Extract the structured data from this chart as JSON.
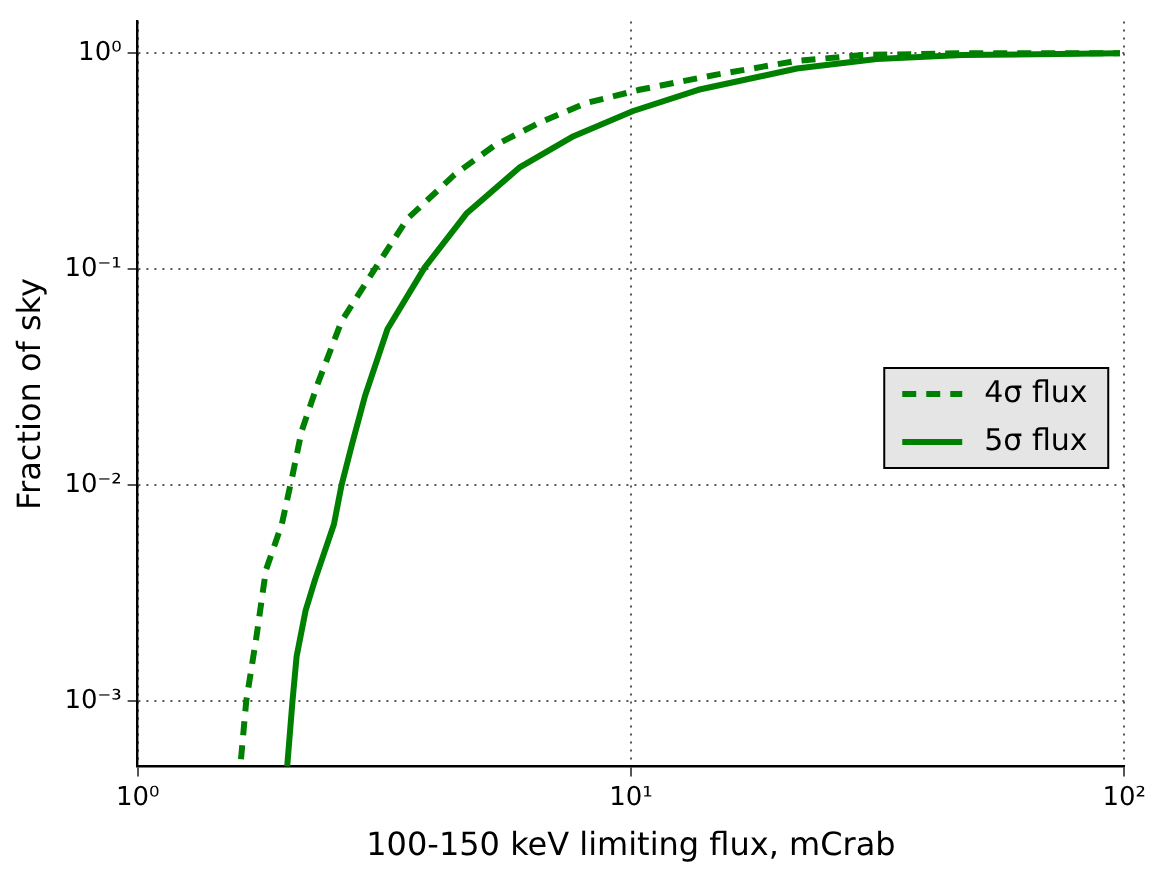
{
  "chart_data": {
    "type": "line",
    "xlabel": "100-150 keV limiting flux, mCrab",
    "ylabel": "Fraction of sky",
    "log": "xy",
    "grid": true,
    "legend": "right",
    "marker": "none",
    "xlim": [
      1,
      100
    ],
    "xticks": [
      {
        "value": 1,
        "label": "10⁰"
      },
      {
        "value": 10,
        "label": "10¹"
      },
      {
        "value": 100,
        "label": "10²"
      }
    ],
    "ylim": [
      0.0005,
      1.4
    ],
    "yticks": [
      {
        "value": 0.001,
        "label": "10⁻³"
      },
      {
        "value": 0.01,
        "label": "10⁻²"
      },
      {
        "value": 0.1,
        "label": "10⁻¹"
      },
      {
        "value": 1,
        "label": "10⁰"
      }
    ],
    "series": [
      {
        "name": "4σ flux",
        "color": "#008000",
        "line_style": "dashed",
        "x": [
          1.62,
          1.66,
          1.74,
          1.82,
          1.96,
          2.06,
          2.15,
          2.32,
          2.59,
          2.92,
          3.52,
          4.39,
          5.28,
          6.53,
          8.08,
          10.4,
          15.0,
          21.7,
          29.5,
          46.9,
          98
        ],
        "values": [
          0.00054,
          0.001,
          0.00197,
          0.00405,
          0.0066,
          0.0111,
          0.0178,
          0.0297,
          0.0574,
          0.0884,
          0.171,
          0.274,
          0.373,
          0.477,
          0.586,
          0.677,
          0.798,
          0.921,
          0.98,
          1.0,
          1.0
        ]
      },
      {
        "name": "5σ flux",
        "color": "#008000",
        "line_style": "solid",
        "x": [
          2.01,
          2.06,
          2.1,
          2.19,
          2.29,
          2.5,
          2.59,
          2.72,
          2.89,
          3.21,
          3.82,
          4.64,
          5.96,
          7.65,
          10.1,
          13.7,
          21.7,
          31.5,
          46.9,
          98
        ],
        "values": [
          0.0005,
          0.001,
          0.00161,
          0.00263,
          0.00367,
          0.0066,
          0.01,
          0.0155,
          0.0259,
          0.0529,
          0.102,
          0.181,
          0.297,
          0.413,
          0.54,
          0.677,
          0.849,
          0.94,
          0.98,
          1.0
        ]
      }
    ]
  }
}
